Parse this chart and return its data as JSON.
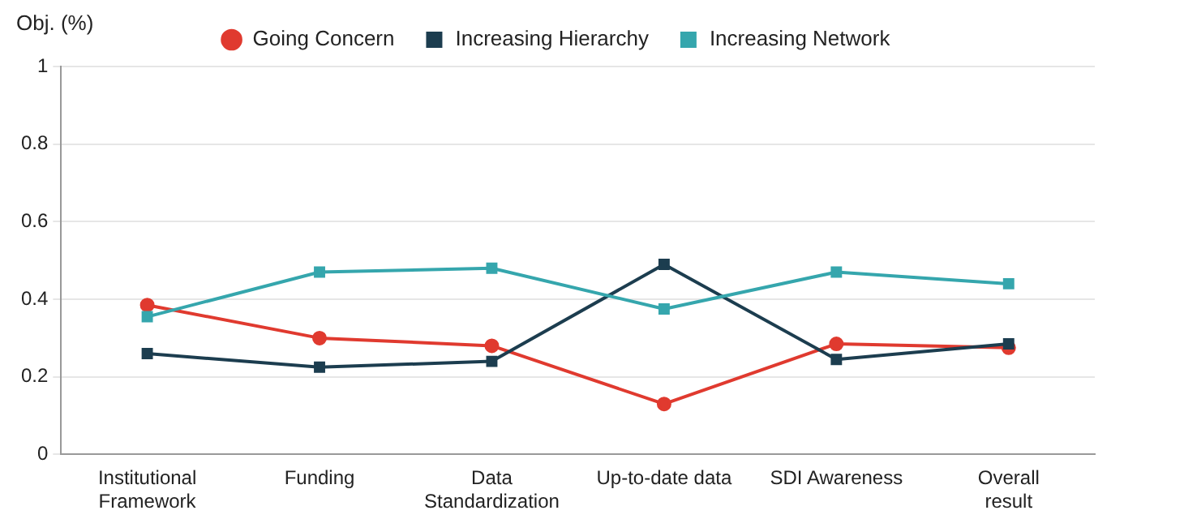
{
  "chart_data": {
    "type": "line",
    "ylabel": "Obj. (%)",
    "categories": [
      [
        "Institutional",
        "Framework"
      ],
      "Funding",
      [
        "Data",
        "Standardization"
      ],
      "Up-to-date data",
      "SDI Awareness",
      [
        "Overall",
        "result"
      ]
    ],
    "series": [
      {
        "name": "Going Concern",
        "color": "#e03a2f",
        "marker": "circle",
        "values": [
          0.385,
          0.3,
          0.28,
          0.13,
          0.285,
          0.275
        ]
      },
      {
        "name": "Increasing Hierarchy",
        "color": "#1c3d4f",
        "marker": "square",
        "values": [
          0.26,
          0.225,
          0.24,
          0.49,
          0.245,
          0.285
        ]
      },
      {
        "name": "Increasing Network",
        "color": "#35a6ad",
        "marker": "square",
        "values": [
          0.355,
          0.47,
          0.48,
          0.375,
          0.47,
          0.44
        ]
      }
    ],
    "ylim": [
      0,
      1
    ],
    "yticks": [
      0,
      0.2,
      0.4,
      0.6,
      0.8,
      1
    ],
    "grid": "y",
    "legend": "top"
  }
}
